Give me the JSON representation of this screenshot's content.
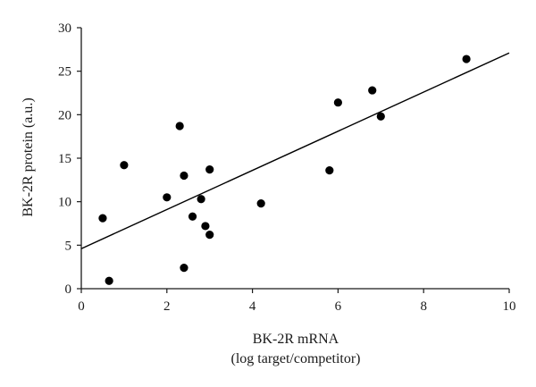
{
  "chart_data": {
    "type": "scatter",
    "title": "",
    "xlabel_line1": "BK-2R mRNA",
    "xlabel_line2": "(log target/competitor)",
    "ylabel": "BK-2R protein (a.u.)",
    "xlim": [
      0,
      10
    ],
    "ylim": [
      0,
      30
    ],
    "x_ticks": [
      0,
      2,
      4,
      6,
      8,
      10
    ],
    "y_ticks": [
      0,
      5,
      10,
      15,
      20,
      25,
      30
    ],
    "grid": false,
    "points": [
      {
        "x": 0.5,
        "y": 8.1
      },
      {
        "x": 0.65,
        "y": 0.9
      },
      {
        "x": 1.0,
        "y": 14.2
      },
      {
        "x": 2.0,
        "y": 10.5
      },
      {
        "x": 2.3,
        "y": 18.7
      },
      {
        "x": 2.4,
        "y": 13.0
      },
      {
        "x": 2.4,
        "y": 2.4
      },
      {
        "x": 2.6,
        "y": 8.3
      },
      {
        "x": 2.8,
        "y": 10.3
      },
      {
        "x": 2.9,
        "y": 7.2
      },
      {
        "x": 3.0,
        "y": 13.7
      },
      {
        "x": 3.0,
        "y": 6.2
      },
      {
        "x": 4.2,
        "y": 9.8
      },
      {
        "x": 5.8,
        "y": 13.6
      },
      {
        "x": 6.0,
        "y": 21.4
      },
      {
        "x": 6.8,
        "y": 22.8
      },
      {
        "x": 7.0,
        "y": 19.8
      },
      {
        "x": 9.0,
        "y": 26.4
      }
    ],
    "trendline": {
      "type": "linear",
      "x_start": 0,
      "y_start": 4.6,
      "x_end": 10,
      "y_end": 27.1
    }
  }
}
